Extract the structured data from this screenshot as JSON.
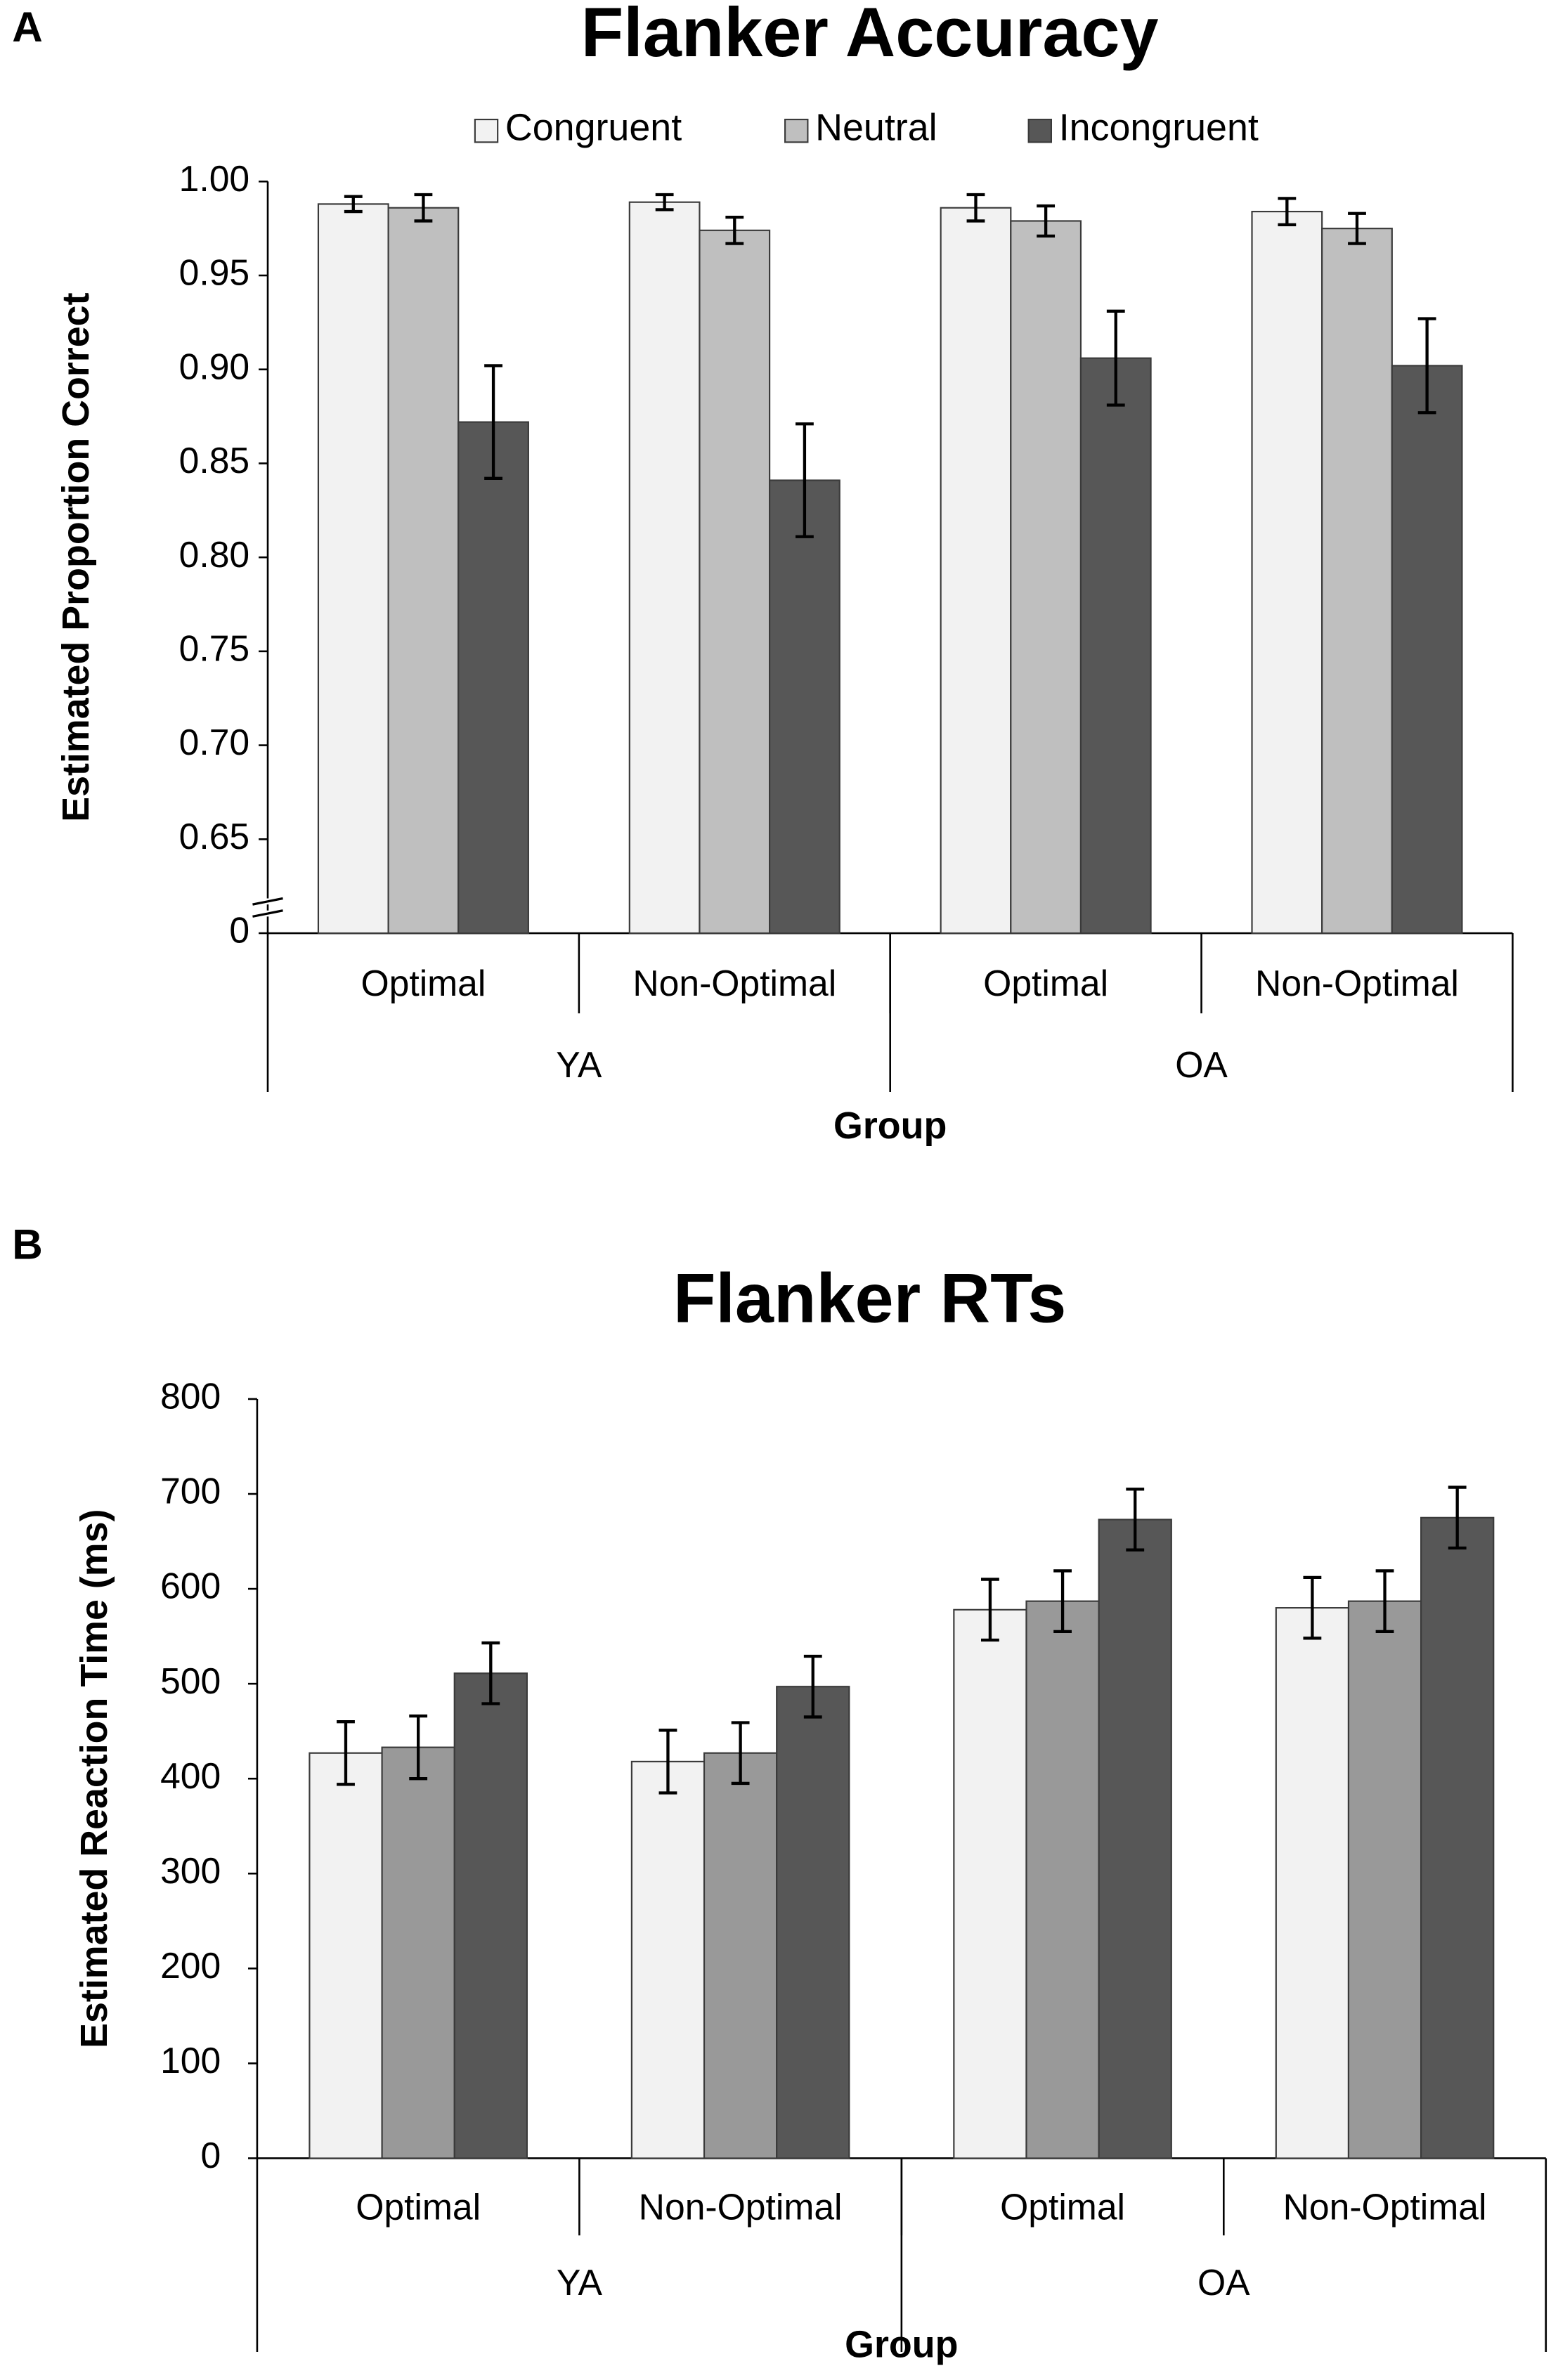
{
  "chart_data": [
    {
      "type": "bar",
      "panel": "A",
      "title": "Flanker Accuracy",
      "ylabel": "Estimated Proportion Correct",
      "xlabel": "Group",
      "categories": [
        "Optimal",
        "Non-Optimal",
        "Optimal",
        "Non-Optimal"
      ],
      "groups": [
        "YA",
        "OA"
      ],
      "ylim": [
        0.6,
        1.0
      ],
      "axis_break": true,
      "yticks": [
        {
          "value": 1.0,
          "label": "1.00"
        },
        0.95,
        {
          "value": 0.9,
          "label": "0.90"
        },
        0.85,
        {
          "value": 0.8,
          "label": "0.80"
        },
        0.75,
        {
          "value": 0.7,
          "label": "0.70"
        },
        0.65,
        0
      ],
      "legend": true,
      "series": [
        {
          "name": "Congruent",
          "color": "#f2f2f2",
          "values": [
            0.988,
            0.989,
            0.986,
            0.984
          ],
          "errors": [
            0.004,
            0.004,
            0.007,
            0.007
          ]
        },
        {
          "name": "Neutral",
          "color": "#bfbfbf",
          "values": [
            0.986,
            0.974,
            0.979,
            0.975
          ],
          "errors": [
            0.007,
            0.007,
            0.008,
            0.008
          ]
        },
        {
          "name": "Incongruent",
          "color": "#575757",
          "values": [
            0.872,
            0.841,
            0.906,
            0.902
          ],
          "errors": [
            0.03,
            0.03,
            0.025,
            0.025
          ]
        }
      ]
    },
    {
      "type": "bar",
      "panel": "B",
      "title": "Flanker RTs",
      "ylabel": "Estimated Reaction Time (ms)",
      "xlabel": "Group",
      "categories": [
        "Optimal",
        "Non-Optimal",
        "Optimal",
        "Non-Optimal"
      ],
      "groups": [
        "YA",
        "OA"
      ],
      "ylim": [
        0,
        800
      ],
      "axis_break": false,
      "yticks": [
        800,
        700,
        600,
        500,
        400,
        300,
        200,
        100,
        0
      ],
      "legend": false,
      "series": [
        {
          "name": "Congruent",
          "color": "#f2f2f2",
          "values": [
            427,
            418,
            578,
            580
          ],
          "errors": [
            33,
            33,
            32,
            32
          ]
        },
        {
          "name": "Neutral",
          "color": "#999999",
          "values": [
            433,
            427,
            587,
            587
          ],
          "errors": [
            33,
            32,
            32,
            32
          ]
        },
        {
          "name": "Incongruent",
          "color": "#575757",
          "values": [
            511,
            497,
            673,
            675
          ],
          "errors": [
            32,
            32,
            32,
            32
          ]
        }
      ]
    }
  ]
}
